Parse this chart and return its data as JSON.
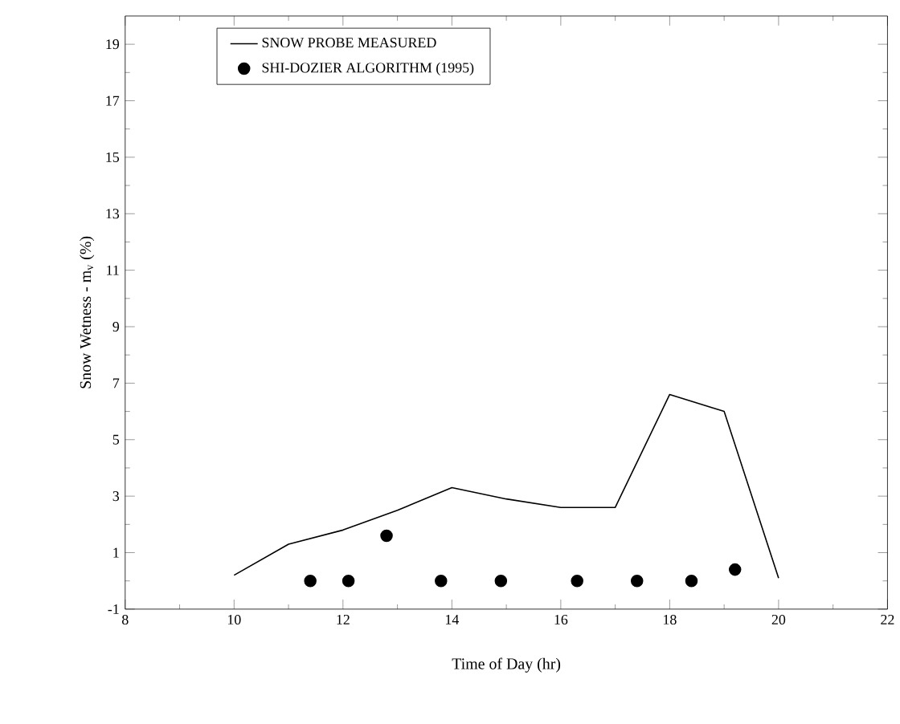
{
  "chart_data": {
    "type": "line",
    "xlabel": "Time of Day (hr)",
    "ylabel": "Snow Wetness - m$_{v}$ (%)",
    "xlim": [
      8,
      22
    ],
    "ylim": [
      -1,
      20
    ],
    "xticks": [
      8,
      10,
      12,
      14,
      16,
      18,
      20,
      22
    ],
    "yticks": [
      -1,
      1,
      3,
      5,
      7,
      9,
      11,
      13,
      15,
      17,
      19
    ],
    "grid": false,
    "legend": "top left",
    "series": [
      {
        "name": "SNOW PROBE MEASURED",
        "color": "#000000",
        "marker": "none",
        "line_style": "solid",
        "x": [
          10,
          11,
          12,
          13,
          14,
          15,
          16,
          17,
          18,
          19,
          20
        ],
        "values": [
          0.2,
          1.3,
          1.8,
          2.5,
          3.3,
          2.9,
          2.6,
          2.6,
          6.6,
          6.0,
          0.1
        ]
      },
      {
        "name": "SHI-DOZIER ALGORITHM (1995)",
        "type": "scatter",
        "color": "#000000",
        "marker": "circle",
        "x": [
          11.4,
          12.1,
          12.8,
          13.8,
          14.9,
          16.3,
          17.4,
          18.4,
          19.2
        ],
        "values": [
          0,
          0,
          1.6,
          0,
          0,
          0,
          0,
          0,
          0.4
        ]
      }
    ]
  }
}
